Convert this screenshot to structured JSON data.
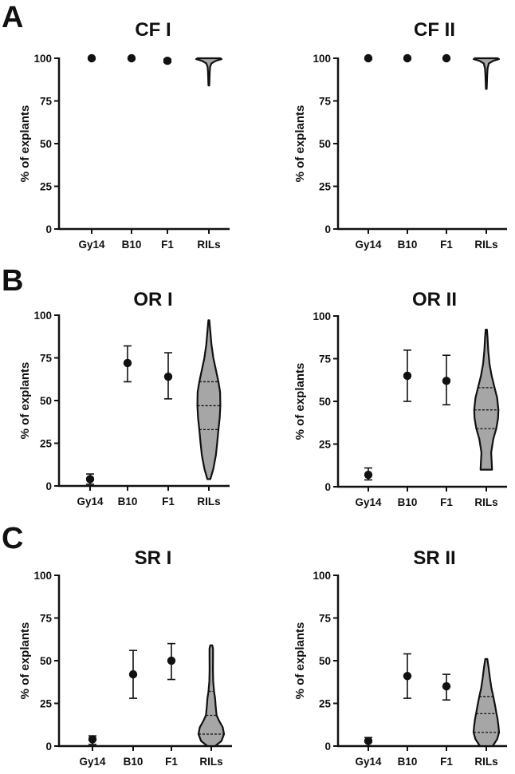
{
  "figure": {
    "panel_letters": [
      "A",
      "B",
      "C"
    ]
  },
  "colors": {
    "ink": "#111111",
    "violin_fill": "#a6a6a6"
  },
  "chart_data": [
    {
      "id": "cf1",
      "panel": "A",
      "type": "scatter",
      "title": "CF I",
      "xlabel": "",
      "ylabel": "% of explants",
      "ylim": [
        0,
        100
      ],
      "yticks": [
        0,
        25,
        50,
        75,
        100
      ],
      "categories": [
        "Gy14",
        "B10",
        "F1",
        "RILs"
      ],
      "points": [
        {
          "category": "Gy14",
          "mean": 100,
          "low": 99.5,
          "high": 100
        },
        {
          "category": "B10",
          "mean": 100,
          "low": 99.5,
          "high": 100
        },
        {
          "category": "F1",
          "mean": 98.5,
          "low": 97.5,
          "high": 99.5
        }
      ],
      "violin": {
        "category": "RILs",
        "min": 84,
        "max": 100,
        "quartiles": [],
        "profile": [
          [
            84,
            0.03
          ],
          [
            88,
            0.05
          ],
          [
            92,
            0.07
          ],
          [
            95,
            0.1
          ],
          [
            97,
            0.2
          ],
          [
            98.5,
            0.55
          ],
          [
            99.5,
            1.0
          ],
          [
            100,
            0.9
          ]
        ]
      }
    },
    {
      "id": "cf2",
      "panel": "A",
      "type": "scatter",
      "title": "CF II",
      "xlabel": "",
      "ylabel": "% of explants",
      "ylim": [
        0,
        100
      ],
      "yticks": [
        0,
        25,
        50,
        75,
        100
      ],
      "categories": [
        "Gy14",
        "B10",
        "F1",
        "RILs"
      ],
      "points": [
        {
          "category": "Gy14",
          "mean": 100,
          "low": 99.5,
          "high": 100
        },
        {
          "category": "B10",
          "mean": 100,
          "low": 99.5,
          "high": 100
        },
        {
          "category": "F1",
          "mean": 100,
          "low": 99.5,
          "high": 100
        }
      ],
      "violin": {
        "category": "RILs",
        "min": 82,
        "max": 100,
        "quartiles": [],
        "profile": [
          [
            82,
            0.03
          ],
          [
            86,
            0.05
          ],
          [
            90,
            0.07
          ],
          [
            94,
            0.1
          ],
          [
            97,
            0.2
          ],
          [
            98.5,
            0.55
          ],
          [
            99.5,
            1.0
          ],
          [
            100,
            0.9
          ]
        ]
      }
    },
    {
      "id": "or1",
      "panel": "B",
      "type": "scatter",
      "title": "OR I",
      "xlabel": "",
      "ylabel": "% of explants",
      "ylim": [
        0,
        100
      ],
      "yticks": [
        0,
        25,
        50,
        75,
        100
      ],
      "categories": [
        "Gy14",
        "B10",
        "F1",
        "RILs"
      ],
      "points": [
        {
          "category": "Gy14",
          "mean": 4,
          "low": 1,
          "high": 7
        },
        {
          "category": "B10",
          "mean": 72,
          "low": 61,
          "high": 82
        },
        {
          "category": "F1",
          "mean": 64,
          "low": 51,
          "high": 78
        }
      ],
      "violin": {
        "category": "RILs",
        "min": 4,
        "max": 97,
        "quartiles": [
          33,
          47,
          61
        ],
        "profile": [
          [
            4,
            0.12
          ],
          [
            10,
            0.35
          ],
          [
            18,
            0.55
          ],
          [
            25,
            0.65
          ],
          [
            33,
            0.75
          ],
          [
            40,
            0.85
          ],
          [
            47,
            0.9
          ],
          [
            55,
            0.88
          ],
          [
            61,
            0.75
          ],
          [
            68,
            0.55
          ],
          [
            75,
            0.35
          ],
          [
            83,
            0.2
          ],
          [
            90,
            0.12
          ],
          [
            97,
            0.04
          ]
        ]
      }
    },
    {
      "id": "or2",
      "panel": "B",
      "type": "scatter",
      "title": "OR II",
      "xlabel": "",
      "ylabel": "% of explants",
      "ylim": [
        0,
        100
      ],
      "yticks": [
        0,
        25,
        50,
        75,
        100
      ],
      "categories": [
        "Gy14",
        "B10",
        "F1",
        "RILs"
      ],
      "points": [
        {
          "category": "Gy14",
          "mean": 7,
          "low": 4,
          "high": 11
        },
        {
          "category": "B10",
          "mean": 65,
          "low": 50,
          "high": 80
        },
        {
          "category": "F1",
          "mean": 62,
          "low": 48,
          "high": 77
        }
      ],
      "violin": {
        "category": "RILs",
        "min": 10,
        "max": 92,
        "quartiles": [
          34,
          45,
          58
        ],
        "profile": [
          [
            10,
            0.45
          ],
          [
            15,
            0.42
          ],
          [
            20,
            0.38
          ],
          [
            28,
            0.55
          ],
          [
            34,
            0.78
          ],
          [
            40,
            0.92
          ],
          [
            45,
            0.95
          ],
          [
            52,
            0.85
          ],
          [
            58,
            0.65
          ],
          [
            65,
            0.42
          ],
          [
            72,
            0.25
          ],
          [
            80,
            0.15
          ],
          [
            87,
            0.1
          ],
          [
            92,
            0.05
          ]
        ]
      }
    },
    {
      "id": "sr1",
      "panel": "C",
      "type": "scatter",
      "title": "SR I",
      "xlabel": "",
      "ylabel": "% of explants",
      "ylim": [
        0,
        100
      ],
      "yticks": [
        0,
        25,
        50,
        75,
        100
      ],
      "categories": [
        "Gy14",
        "B10",
        "F1",
        "RILs"
      ],
      "points": [
        {
          "category": "Gy14",
          "mean": 4,
          "low": 1,
          "high": 6
        },
        {
          "category": "B10",
          "mean": 42,
          "low": 28,
          "high": 56
        },
        {
          "category": "F1",
          "mean": 50,
          "low": 39,
          "high": 60
        }
      ],
      "violin": {
        "category": "RILs",
        "min": 0,
        "max": 59,
        "quartiles": [
          7,
          18,
          32
        ],
        "profile": [
          [
            0,
            0.3
          ],
          [
            3,
            0.8
          ],
          [
            7,
            1.0
          ],
          [
            11,
            0.9
          ],
          [
            15,
            0.6
          ],
          [
            18,
            0.42
          ],
          [
            23,
            0.35
          ],
          [
            28,
            0.3
          ],
          [
            32,
            0.22
          ],
          [
            38,
            0.15
          ],
          [
            45,
            0.13
          ],
          [
            52,
            0.14
          ],
          [
            57,
            0.14
          ],
          [
            59,
            0.08
          ]
        ]
      }
    },
    {
      "id": "sr2",
      "panel": "C",
      "type": "scatter",
      "title": "SR II",
      "xlabel": "",
      "ylabel": "% of explants",
      "ylim": [
        0,
        100
      ],
      "yticks": [
        0,
        25,
        50,
        75,
        100
      ],
      "categories": [
        "Gy14",
        "B10",
        "F1",
        "RILs"
      ],
      "points": [
        {
          "category": "Gy14",
          "mean": 3,
          "low": 0,
          "high": 5
        },
        {
          "category": "B10",
          "mean": 41,
          "low": 28,
          "high": 54
        },
        {
          "category": "F1",
          "mean": 35,
          "low": 27,
          "high": 42
        }
      ],
      "violin": {
        "category": "RILs",
        "min": 0,
        "max": 51,
        "quartiles": [
          8,
          19,
          29
        ],
        "profile": [
          [
            0,
            0.5
          ],
          [
            4,
            0.85
          ],
          [
            8,
            1.0
          ],
          [
            12,
            0.95
          ],
          [
            16,
            0.88
          ],
          [
            19,
            0.8
          ],
          [
            24,
            0.68
          ],
          [
            29,
            0.55
          ],
          [
            34,
            0.4
          ],
          [
            40,
            0.28
          ],
          [
            46,
            0.18
          ],
          [
            51,
            0.08
          ]
        ]
      }
    }
  ]
}
